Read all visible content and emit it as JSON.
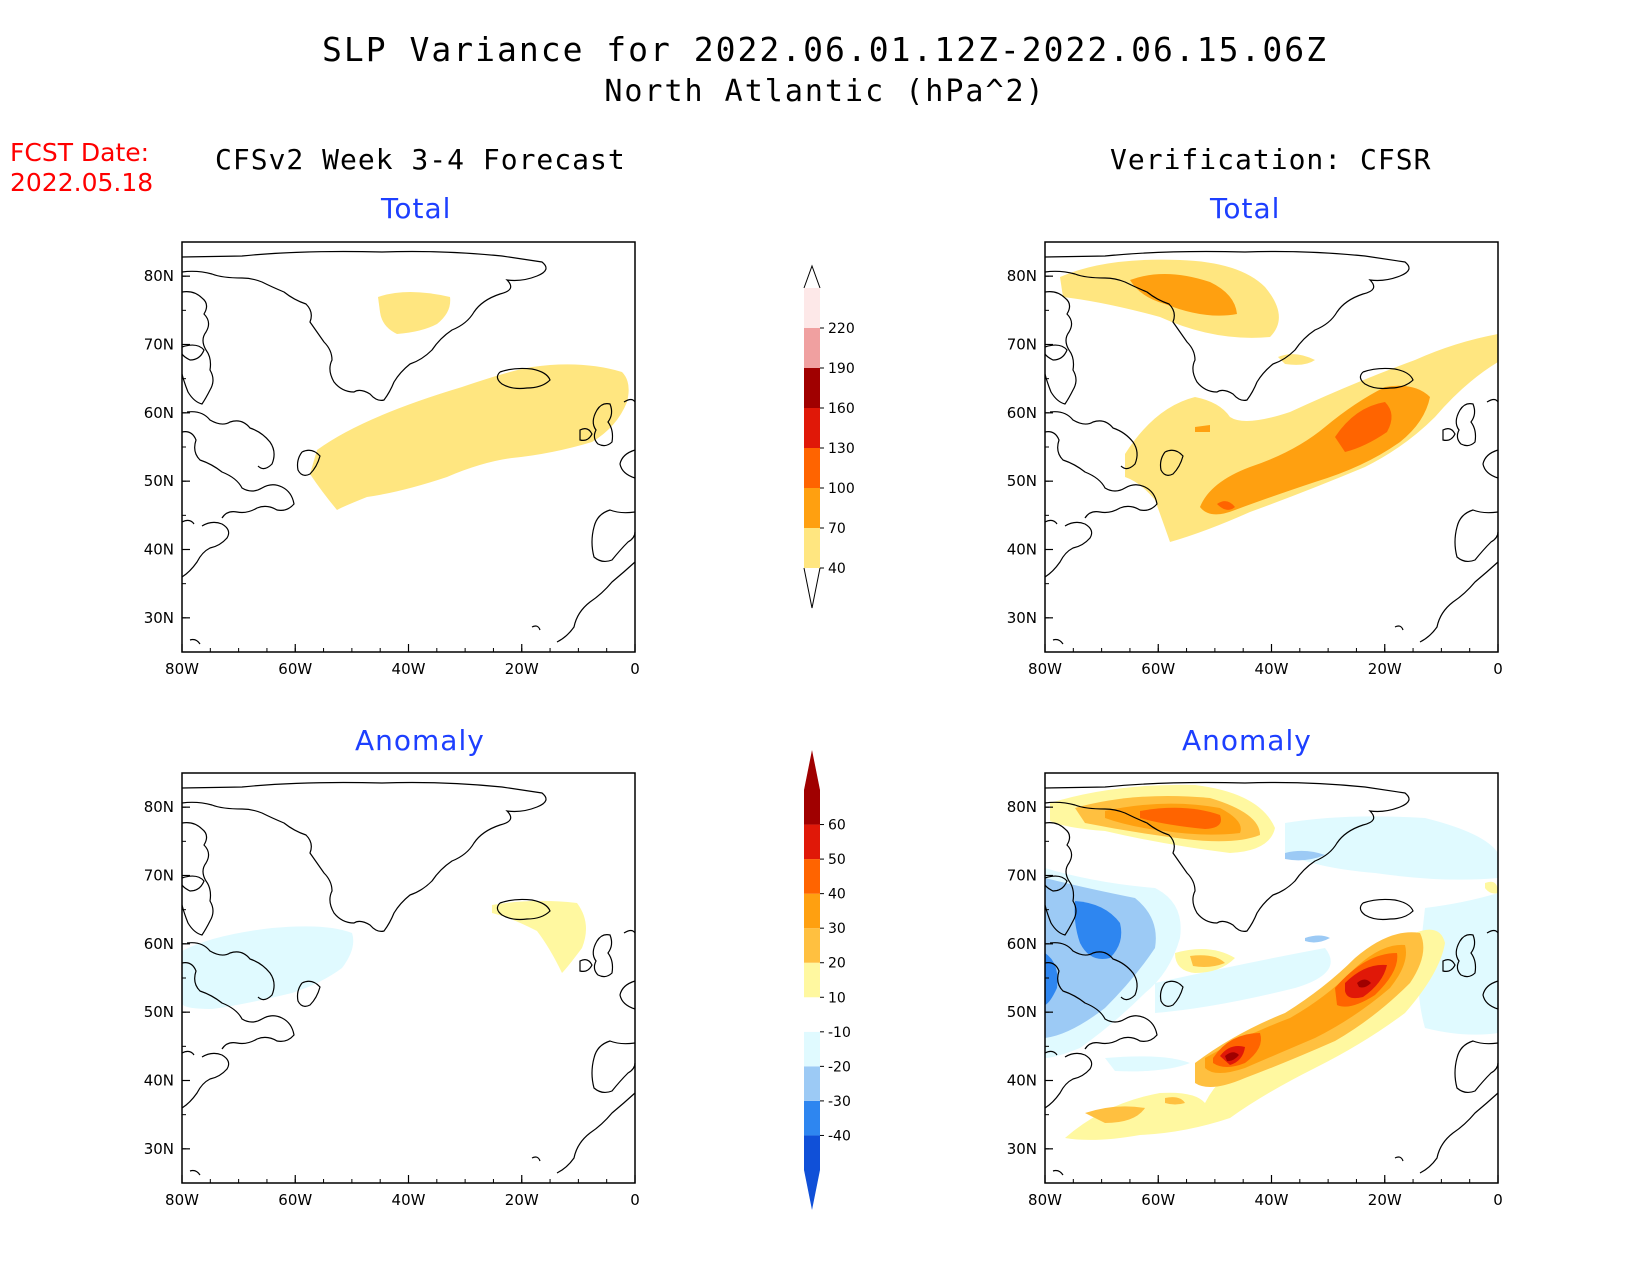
{
  "header": {
    "title": "SLP Variance for 2022.06.01.12Z-2022.06.15.06Z",
    "subtitle": "North Atlantic (hPa^2)",
    "fcst_label": "FCST Date:",
    "fcst_date": "2022.05.18",
    "left_heading": "CFSv2 Week 3-4 Forecast",
    "right_heading": "Verification: CFSR"
  },
  "panels": [
    {
      "id": "fcst-total",
      "title": "Total",
      "scale": "total"
    },
    {
      "id": "verif-total",
      "title": "Total",
      "scale": "total"
    },
    {
      "id": "fcst-anomaly",
      "title": "Anomaly",
      "scale": "anomaly"
    },
    {
      "id": "verif-anomaly",
      "title": "Anomaly",
      "scale": "anomaly"
    }
  ],
  "chart_data": {
    "type": "map",
    "region": "North Atlantic",
    "lon_range": [
      -80,
      0
    ],
    "lat_range": [
      25,
      85
    ],
    "x_ticks": [
      "80W",
      "60W",
      "40W",
      "20W",
      "0"
    ],
    "y_ticks": [
      "30N",
      "40N",
      "50N",
      "60N",
      "70N",
      "80N"
    ],
    "colorbars": {
      "total": {
        "levels": [
          "40",
          "70",
          "100",
          "130",
          "160",
          "190",
          "220"
        ],
        "colors": [
          "#ffe680",
          "#ffa010",
          "#ff6400",
          "#e01808",
          "#a00000",
          "#f0a0a0",
          "#fde8e8"
        ]
      },
      "anomaly": {
        "levels": [
          "-40",
          "-30",
          "-20",
          "-10",
          "10",
          "20",
          "30",
          "40",
          "50",
          "60"
        ],
        "colors": [
          "#1050d8",
          "#2e86f0",
          "#9ccaf5",
          "#e0faff",
          "#ffffff",
          "#fff8a0",
          "#ffc040",
          "#ffa010",
          "#ff6400",
          "#e01808",
          "#a00000"
        ]
      }
    }
  }
}
